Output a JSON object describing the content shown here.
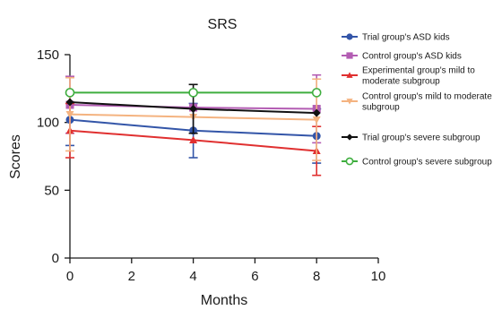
{
  "chart_data": {
    "type": "line",
    "title": "SRS",
    "xlabel": "Months",
    "ylabel": "Scores",
    "xlim": [
      0,
      10
    ],
    "ylim": [
      0,
      150
    ],
    "x_ticks": [
      "0",
      "2",
      "4",
      "6",
      "8",
      "10"
    ],
    "y_ticks": [
      "0",
      "50",
      "100",
      "150"
    ],
    "x_tick_values": [
      0,
      2,
      4,
      6,
      8,
      10
    ],
    "y_tick_values": [
      0,
      50,
      100,
      150
    ],
    "grid": false,
    "legend_position": "right",
    "series": [
      {
        "name": "Trial group's ASD kids",
        "color": "#3355a8",
        "marker": "circle",
        "x": [
          0,
          4,
          8
        ],
        "y": [
          102,
          94,
          90
        ],
        "err": [
          19,
          20,
          20
        ]
      },
      {
        "name": "Control group's ASD kids",
        "color": "#b35db3",
        "marker": "square",
        "x": [
          0,
          4,
          8
        ],
        "y": [
          113,
          111,
          110
        ],
        "err": [
          21,
          0,
          25
        ]
      },
      {
        "name": "Experimental group's mild to moderate subgroup",
        "color": "#e03030",
        "marker": "triangle",
        "x": [
          0,
          4,
          8
        ],
        "y": [
          94,
          87,
          79
        ],
        "err": [
          20,
          0,
          18
        ]
      },
      {
        "name": "Control group's mild to moderate subgroup",
        "color": "#f4b380",
        "marker": "triangle-down",
        "x": [
          0,
          4,
          8
        ],
        "y": [
          106,
          104,
          102
        ],
        "err": [
          27,
          0,
          30
        ]
      },
      {
        "name": "Trial group's severe subgroup",
        "color": "#111111",
        "marker": "diamond",
        "x": [
          0,
          4,
          8
        ],
        "y": [
          115,
          110,
          107
        ],
        "err": [
          0,
          18,
          0
        ]
      },
      {
        "name": "Control group's severe subgroup",
        "color": "#3fae3f",
        "marker": "circle-open",
        "x": [
          0,
          4,
          8
        ],
        "y": [
          122,
          122,
          122
        ],
        "err": [
          0,
          0,
          0
        ]
      }
    ]
  }
}
